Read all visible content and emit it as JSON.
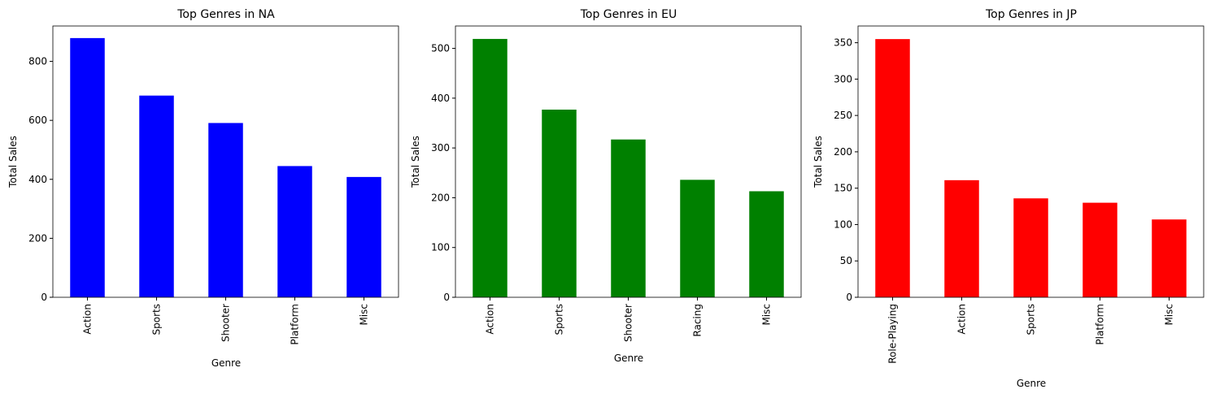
{
  "chart_data": [
    {
      "type": "bar",
      "title": "Top Genres in NA",
      "xlabel": "Genre",
      "ylabel": "Total Sales",
      "categories": [
        "Action",
        "Sports",
        "Shooter",
        "Platform",
        "Misc"
      ],
      "values": [
        879,
        684,
        591,
        445,
        408
      ],
      "ylim": [
        0,
        920
      ],
      "yticks": [
        0,
        200,
        400,
        600,
        800
      ],
      "color": "#0000ff",
      "grid": false
    },
    {
      "type": "bar",
      "title": "Top Genres in EU",
      "xlabel": "Genre",
      "ylabel": "Total Sales",
      "categories": [
        "Action",
        "Sports",
        "Shooter",
        "Racing",
        "Misc"
      ],
      "values": [
        519,
        377,
        317,
        236,
        213
      ],
      "ylim": [
        0,
        545
      ],
      "yticks": [
        0,
        100,
        200,
        300,
        400,
        500
      ],
      "color": "#008000",
      "grid": false
    },
    {
      "type": "bar",
      "title": "Top Genres in JP",
      "xlabel": "Genre",
      "ylabel": "Total Sales",
      "categories": [
        "Role-Playing",
        "Action",
        "Sports",
        "Platform",
        "Misc"
      ],
      "values": [
        355,
        161,
        136,
        130,
        107
      ],
      "ylim": [
        0,
        373
      ],
      "yticks": [
        0,
        50,
        100,
        150,
        200,
        250,
        300,
        350
      ],
      "color": "#ff0000",
      "grid": false
    }
  ]
}
